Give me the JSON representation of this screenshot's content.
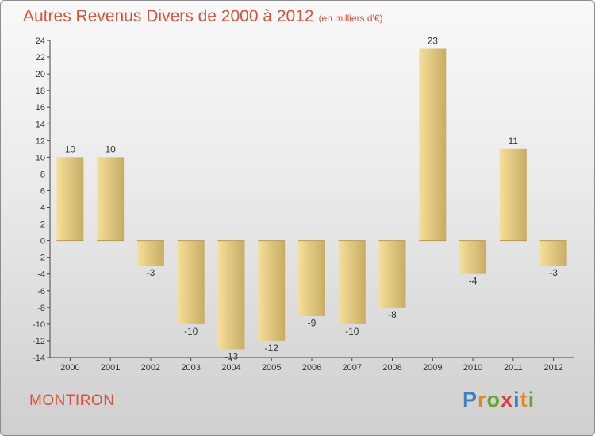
{
  "title": "Autres Revenus Divers de 2000 à 2012",
  "subtitle": "(en milliers d'€)",
  "town": "MONTIRON",
  "logo": {
    "letters": [
      "P",
      "r",
      "o",
      "x",
      "i",
      "t",
      "i"
    ],
    "colors": [
      "#3b82c4",
      "#e0892a",
      "#6aa534",
      "#e03b3b",
      "#3b82c4",
      "#e0892a",
      "#6aa534"
    ]
  },
  "colors": {
    "title": "#d9513a",
    "bar_light": "#f6df9a",
    "bar_dark": "#c7ac64",
    "axis": "#444444",
    "grid": "#bbbbbb"
  },
  "chart_data": {
    "type": "bar",
    "title": "Autres Revenus Divers de 2000 à 2012",
    "subtitle": "(en milliers d'€)",
    "categories": [
      "2000",
      "2001",
      "2002",
      "2003",
      "2004",
      "2005",
      "2006",
      "2007",
      "2008",
      "2009",
      "2010",
      "2011",
      "2012"
    ],
    "values": [
      10,
      10,
      -3,
      -10,
      -13,
      -12,
      -9,
      -10,
      -8,
      23,
      -4,
      11,
      -3
    ],
    "ylim": [
      -14,
      24
    ],
    "yticks": [
      24,
      22,
      20,
      18,
      16,
      14,
      12,
      10,
      8,
      6,
      4,
      2,
      0,
      -2,
      -4,
      -6,
      -8,
      -10,
      -12,
      -14
    ],
    "grid": false,
    "legend": "none",
    "data_labels": true
  }
}
